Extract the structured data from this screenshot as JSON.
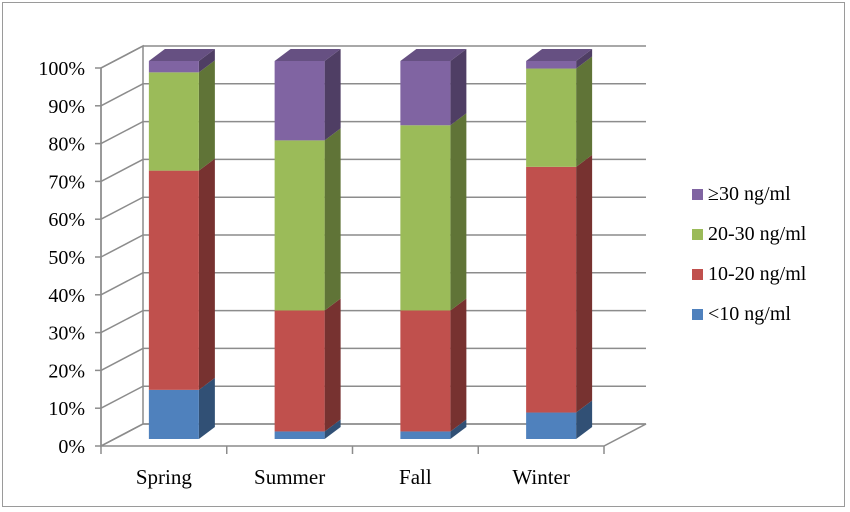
{
  "chart_data": {
    "type": "bar",
    "stacked": true,
    "three_d": true,
    "categories": [
      "Spring",
      "Summer",
      "Fall",
      "Winter"
    ],
    "yticks": [
      "0%",
      "10%",
      "20%",
      "30%",
      "40%",
      "50%",
      "60%",
      "70%",
      "80%",
      "90%",
      "100%"
    ],
    "ylim": [
      0,
      100
    ],
    "grid": true,
    "legend_position": "right",
    "series": [
      {
        "name": "<10 ng/ml",
        "color": "#4f81bd",
        "values": [
          13,
          2,
          2,
          7
        ]
      },
      {
        "name": "10-20 ng/ml",
        "color": "#c0504d",
        "values": [
          58,
          32,
          32,
          65
        ]
      },
      {
        "name": "20-30 ng/ml",
        "color": "#9bbb59",
        "values": [
          26,
          45,
          49,
          26
        ]
      },
      {
        "name": "≥30 ng/ml",
        "color": "#8064a2",
        "values": [
          3,
          21,
          17,
          2
        ]
      }
    ]
  }
}
